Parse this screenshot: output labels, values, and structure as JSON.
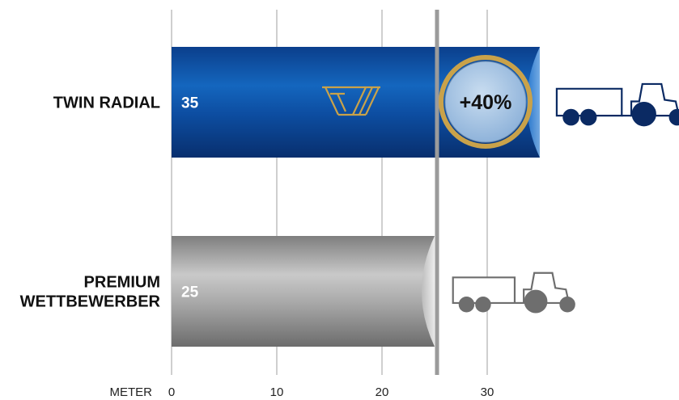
{
  "chart_data": {
    "type": "bar",
    "orientation": "horizontal",
    "categories": [
      "TWIN RADIAL",
      "PREMIUM WETTBEWERBER"
    ],
    "category_lines": [
      [
        "TWIN RADIAL"
      ],
      [
        "PREMIUM",
        "WETTBEWERBER"
      ]
    ],
    "values": [
      35,
      25
    ],
    "value_labels": [
      "35",
      "25"
    ],
    "xlabel": "METER",
    "xlim": [
      0,
      35
    ],
    "xticks": [
      0,
      10,
      20,
      30
    ],
    "grid": true,
    "reference_line": 25,
    "badge": "+40%",
    "colors": {
      "twin_radial": "#0a3f8f",
      "competitor": "#9a9a9a",
      "badge_ring": "#c9a24a",
      "badge_fill": "#a9c6e4",
      "tractor_blue": "#0b2a63",
      "tractor_grey": "#6e6e6e",
      "grid": "#cfcfcf",
      "reference_line": "#9b9b9b"
    },
    "icons": [
      "brand-logo-icon",
      "tractor-trailer-icon"
    ]
  }
}
